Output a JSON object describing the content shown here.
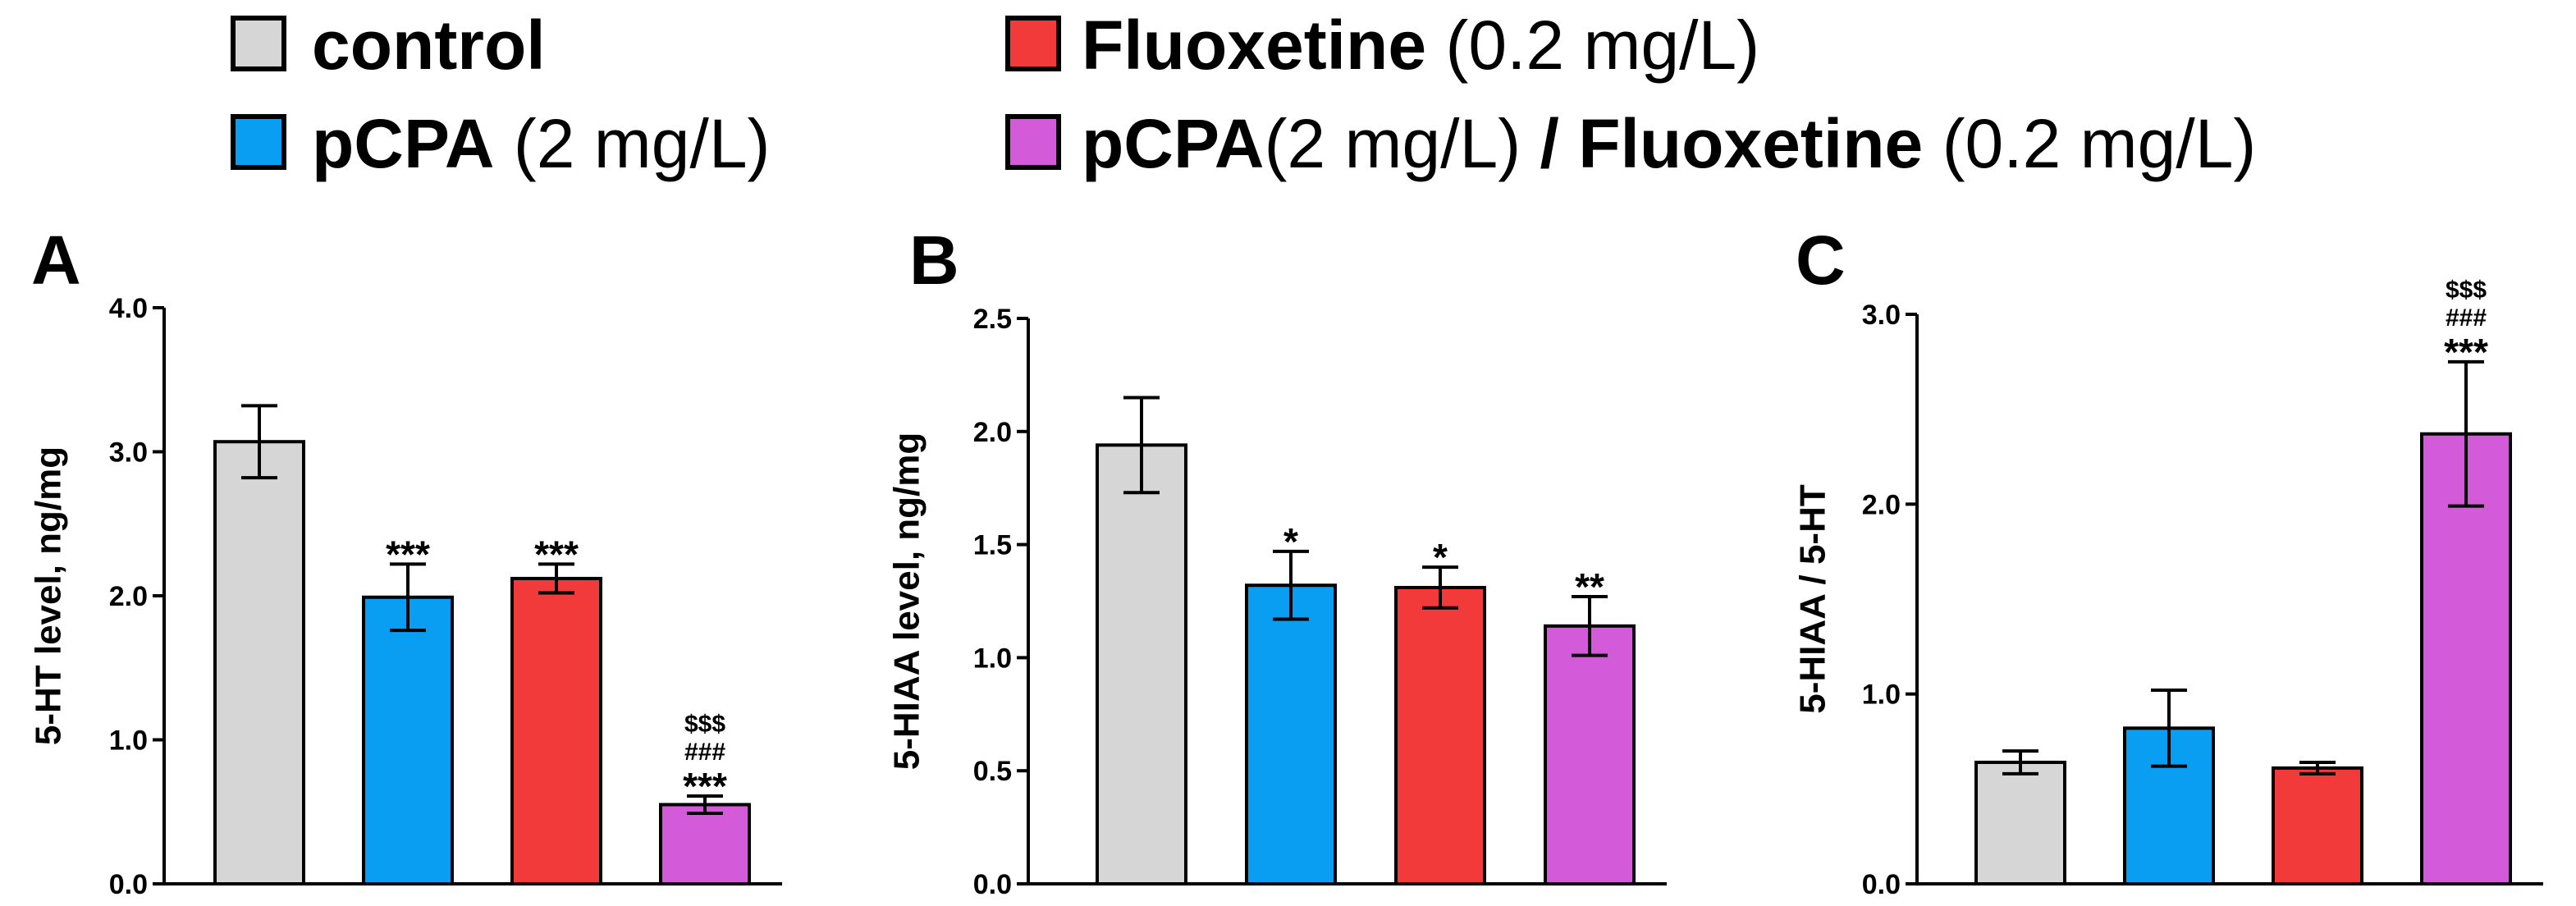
{
  "colors": {
    "control": "#d6d6d6",
    "pcpa": "#0a9ef2",
    "fluoxetine": "#f23a3a",
    "combo": "#d35ad8",
    "axis": "#000000"
  },
  "legend": [
    {
      "key": "control",
      "bold": "control",
      "rest": ""
    },
    {
      "key": "fluoxetine",
      "bold": "Fluoxetine",
      "rest": " (0.2 mg/L)"
    },
    {
      "key": "pcpa",
      "bold": "pCPA",
      "rest": " (2 mg/L)"
    },
    {
      "key": "combo",
      "bold": "pCPA",
      "rest": "(2 mg/L) ",
      "bold2": "/ Fluoxetine",
      "rest2": " (0.2 mg/L)"
    }
  ],
  "chart_data": [
    {
      "panel": "A",
      "type": "bar",
      "ylabel": "5-HT level, ng/mg",
      "ylim": [
        0,
        4
      ],
      "yticks": [
        "0.0",
        "1.0",
        "2.0",
        "3.0",
        "4.0"
      ],
      "categories": [
        "control",
        "pCPA (2 mg/L)",
        "Fluoxetine (0.2 mg/L)",
        "pCPA(2 mg/L)/ Fluoxetine (0.2 mg/L)"
      ],
      "series_keys": [
        "control",
        "pcpa",
        "fluoxetine",
        "combo"
      ],
      "values": [
        3.07,
        1.99,
        2.12,
        0.55
      ],
      "errors": [
        0.25,
        0.23,
        0.1,
        0.06
      ],
      "annotations": [
        [],
        [
          "***"
        ],
        [
          "***"
        ],
        [
          "$$$",
          "###",
          "***"
        ]
      ]
    },
    {
      "panel": "B",
      "type": "bar",
      "ylabel": "5-HIAA level, ng/mg",
      "ylim": [
        0,
        2.5
      ],
      "yticks": [
        "0.0",
        "0.5",
        "1.0",
        "1.5",
        "2.0",
        "2.5"
      ],
      "categories": [
        "control",
        "pCPA (2 mg/L)",
        "Fluoxetine (0.2 mg/L)",
        "pCPA(2 mg/L)/ Fluoxetine (0.2 mg/L)"
      ],
      "series_keys": [
        "control",
        "pcpa",
        "fluoxetine",
        "combo"
      ],
      "values": [
        1.94,
        1.32,
        1.31,
        1.14
      ],
      "errors": [
        0.21,
        0.15,
        0.09,
        0.13
      ],
      "annotations": [
        [],
        [
          "*"
        ],
        [
          "*"
        ],
        [
          "**"
        ]
      ]
    },
    {
      "panel": "C",
      "type": "bar",
      "ylabel": "5-HIAA / 5-HT",
      "ylim": [
        0,
        3
      ],
      "yticks": [
        "0.0",
        "1.0",
        "2.0",
        "3.0"
      ],
      "categories": [
        "control",
        "pCPA (2 mg/L)",
        "Fluoxetine (0.2 mg/L)",
        "pCPA(2 mg/L)/ Fluoxetine (0.2 mg/L)"
      ],
      "series_keys": [
        "control",
        "pcpa",
        "fluoxetine",
        "combo"
      ],
      "values": [
        0.64,
        0.82,
        0.61,
        2.37
      ],
      "errors": [
        0.06,
        0.2,
        0.03,
        0.38
      ],
      "annotations": [
        [],
        [],
        [],
        [
          "$$$",
          "###",
          "***"
        ]
      ]
    }
  ]
}
